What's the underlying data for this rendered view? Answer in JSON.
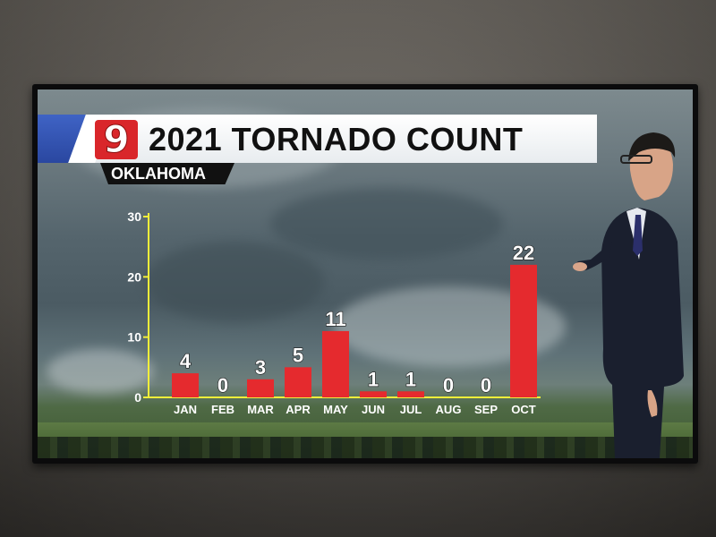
{
  "broadcast": {
    "logo_text": "9",
    "title": "2021 TORNADO COUNT",
    "subtitle": "OKLAHOMA"
  },
  "chart_data": {
    "type": "bar",
    "title": "2021 TORNADO COUNT",
    "subtitle": "OKLAHOMA",
    "categories": [
      "JAN",
      "FEB",
      "MAR",
      "APR",
      "MAY",
      "JUN",
      "JUL",
      "AUG",
      "SEP",
      "OCT"
    ],
    "values": [
      4,
      0,
      3,
      5,
      11,
      1,
      1,
      0,
      0,
      22
    ],
    "ylim": [
      0,
      30
    ],
    "yticks": [
      0,
      10,
      20,
      30
    ],
    "xlabel": "",
    "ylabel": "",
    "data_labels": true,
    "grid": false,
    "bar_color": "#e52a2e",
    "axis_color": "#f2ee3a"
  }
}
